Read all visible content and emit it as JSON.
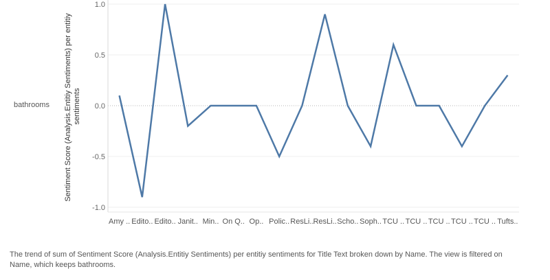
{
  "row_header": {
    "label": "bathrooms"
  },
  "chart_data": {
    "type": "line",
    "ylabel_lines": [
      "Sentiment Score (Analysis.Entitiy Sentiments) per entitiy",
      "sentiments"
    ],
    "ylim": [
      -1.0,
      1.0
    ],
    "yticks": [
      1.0,
      0.5,
      0.0,
      -0.5,
      -1.0
    ],
    "ytick_labels": [
      "1.0",
      "0.5",
      "0.0",
      "-0.5",
      "-1.0"
    ],
    "grid": true,
    "zero_line_style": "dotted",
    "line_color": "#4e79a7",
    "categories": [
      "Amy ..",
      "Edito..",
      "Edito..",
      "Janit..",
      "Min..",
      "On Q..",
      "Op..",
      "Polic..",
      "ResLi..",
      "ResLi..",
      "Scho..",
      "Soph..",
      "TCU ..",
      "TCU ..",
      "TCU ..",
      "TCU ..",
      "TCU ..",
      "Tufts.."
    ],
    "values": [
      0.1,
      -0.9,
      1.0,
      -0.2,
      0.0,
      0.0,
      0.0,
      -0.5,
      0.0,
      0.9,
      0.0,
      -0.4,
      0.6,
      0.0,
      0.0,
      -0.4,
      0.0,
      0.3
    ]
  },
  "caption": "The trend of sum of Sentiment Score (Analysis.Entitiy Sentiments) per entitiy sentiments for Title Text broken down by Name.  The view is filtered on Name, which keeps bathrooms."
}
